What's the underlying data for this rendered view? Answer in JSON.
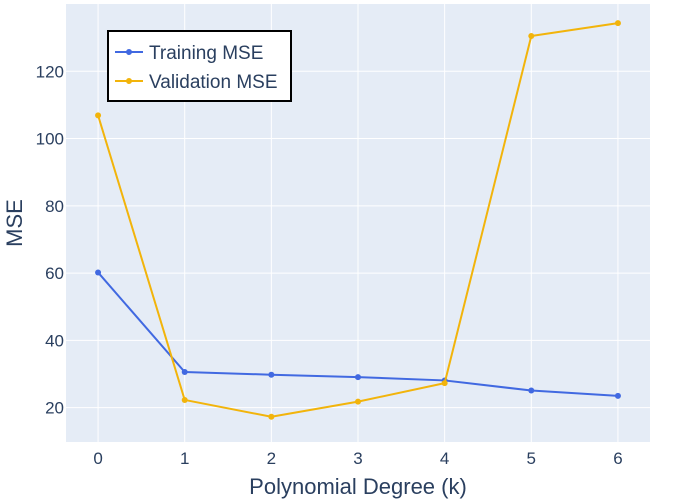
{
  "chart_data": {
    "type": "line",
    "x": [
      0,
      1,
      2,
      3,
      4,
      5,
      6
    ],
    "xlabel": "Polynomial Degree (k)",
    "ylabel": "MSE",
    "xlim": [
      -0.37,
      6.37
    ],
    "ylim": [
      9.8,
      140
    ],
    "x_ticks": [
      0,
      1,
      2,
      3,
      4,
      5,
      6
    ],
    "y_ticks": [
      20,
      40,
      60,
      80,
      100,
      120
    ],
    "grid": true,
    "legend_position": "top-left",
    "series": [
      {
        "name": "Training MSE",
        "color": "#4169e1",
        "values": [
          60.2,
          30.6,
          29.8,
          29.1,
          28.1,
          25.1,
          23.5
        ]
      },
      {
        "name": "Validation MSE",
        "color": "#f2b40b",
        "values": [
          106.9,
          22.3,
          17.3,
          21.8,
          27.3,
          130.5,
          134.3
        ]
      }
    ],
    "plot_background": "#e5ecf6"
  }
}
